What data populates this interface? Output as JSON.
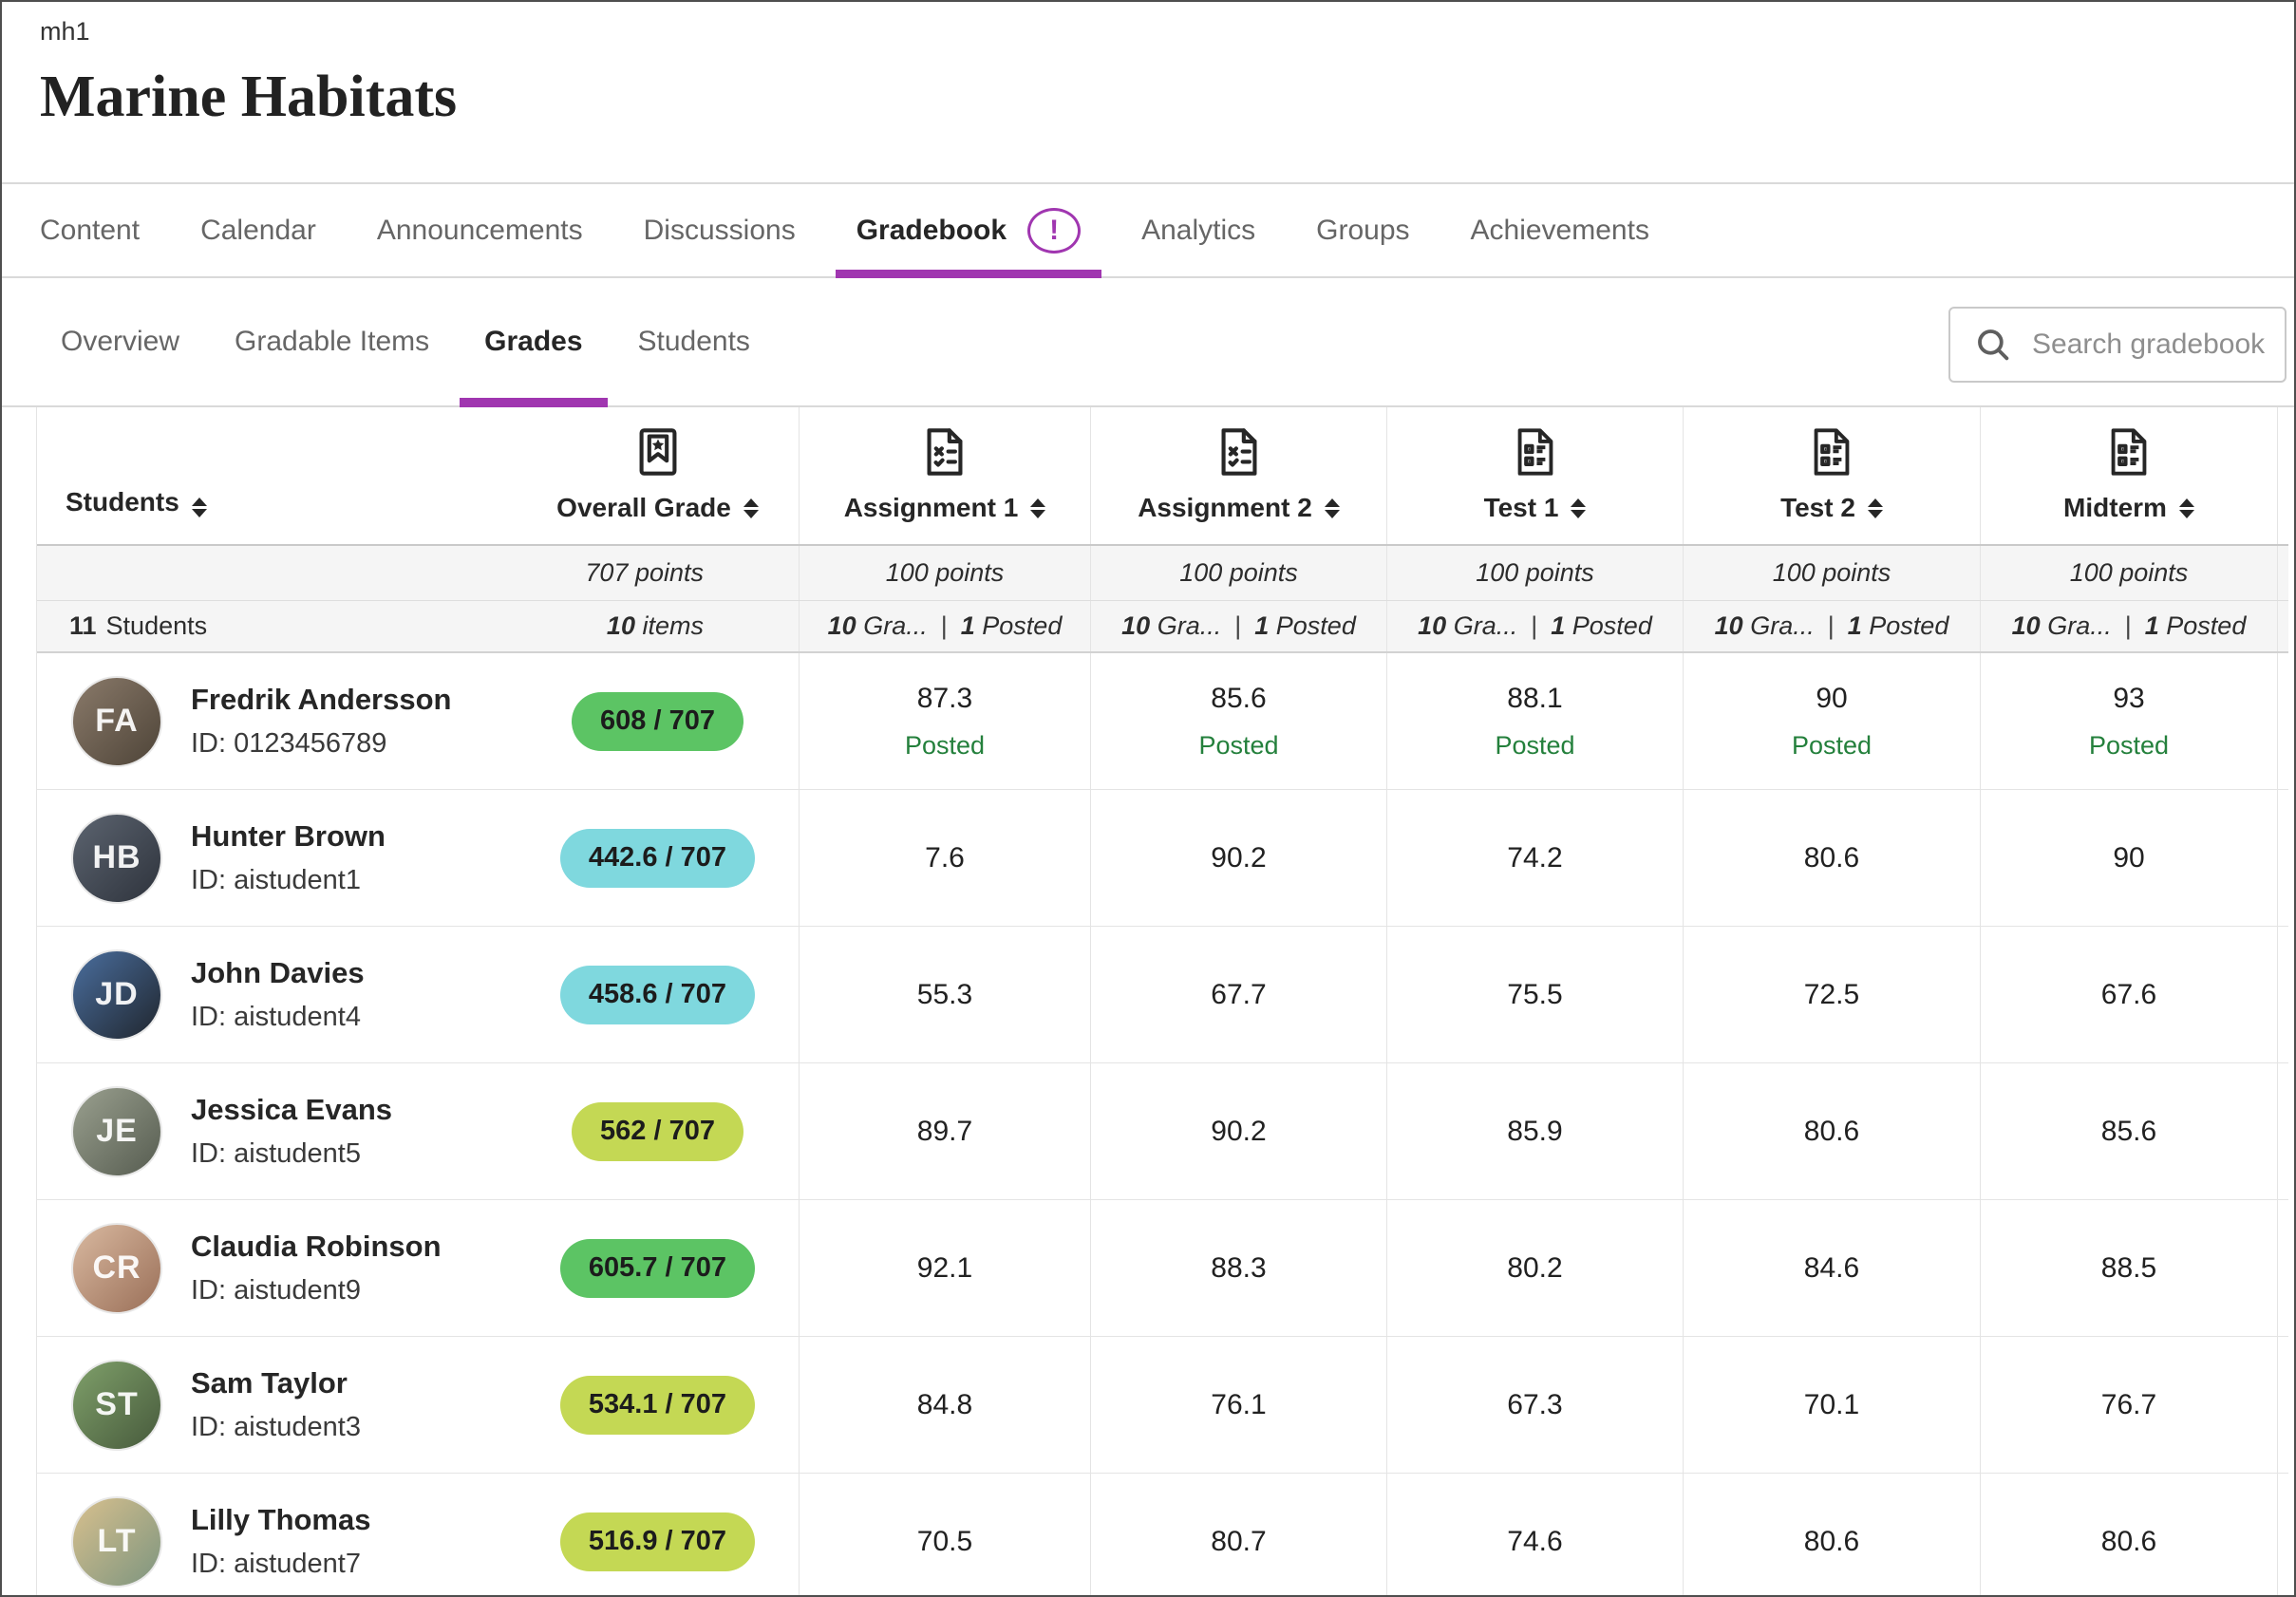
{
  "header": {
    "course_code": "mh1",
    "course_title": "Marine Habitats"
  },
  "primary_nav": [
    {
      "label": "Content"
    },
    {
      "label": "Calendar"
    },
    {
      "label": "Announcements"
    },
    {
      "label": "Discussions"
    },
    {
      "label": "Gradebook",
      "active": true,
      "badge": "!"
    },
    {
      "label": "Analytics"
    },
    {
      "label": "Groups"
    },
    {
      "label": "Achievements"
    }
  ],
  "sub_nav": {
    "tabs": [
      {
        "label": "Overview"
      },
      {
        "label": "Gradable Items"
      },
      {
        "label": "Grades",
        "active": true
      },
      {
        "label": "Students"
      }
    ],
    "search_placeholder": "Search gradebook"
  },
  "table": {
    "students_col": {
      "label": "Students",
      "count": "11",
      "count_label": "Students"
    },
    "overall_col": {
      "label": "Overall Grade",
      "icon": "award",
      "points": "707 points",
      "items_count": "10",
      "items_label": "items"
    },
    "item_columns": [
      {
        "label": "Assignment 1",
        "icon": "assignment",
        "points": "100 points",
        "graded_count": "10",
        "graded_label": "Gra...",
        "posted_count": "1",
        "posted_label": "Posted"
      },
      {
        "label": "Assignment 2",
        "icon": "assignment",
        "points": "100 points",
        "graded_count": "10",
        "graded_label": "Gra...",
        "posted_count": "1",
        "posted_label": "Posted"
      },
      {
        "label": "Test 1",
        "icon": "test",
        "points": "100 points",
        "graded_count": "10",
        "graded_label": "Gra...",
        "posted_count": "1",
        "posted_label": "Posted"
      },
      {
        "label": "Test 2",
        "icon": "test",
        "points": "100 points",
        "graded_count": "10",
        "graded_label": "Gra...",
        "posted_count": "1",
        "posted_label": "Posted"
      },
      {
        "label": "Midterm",
        "icon": "test",
        "points": "100 points",
        "graded_count": "10",
        "graded_label": "Gra...",
        "posted_count": "1",
        "posted_label": "Posted"
      }
    ],
    "rows": [
      {
        "name": "Fredrik Andersson",
        "id": "ID: 0123456789",
        "avatar_colors": [
          "#8a7a6a",
          "#4e4438"
        ],
        "overall": "608 / 707",
        "overall_color": "green",
        "grades": [
          {
            "value": "87.3",
            "status": "Posted"
          },
          {
            "value": "85.6",
            "status": "Posted"
          },
          {
            "value": "88.1",
            "status": "Posted"
          },
          {
            "value": "90",
            "status": "Posted"
          },
          {
            "value": "93",
            "status": "Posted"
          }
        ]
      },
      {
        "name": "Hunter Brown",
        "id": "ID: aistudent1",
        "avatar_colors": [
          "#5c6470",
          "#2e333c"
        ],
        "overall": "442.6 / 707",
        "overall_color": "teal",
        "grades": [
          {
            "value": "7.6"
          },
          {
            "value": "90.2"
          },
          {
            "value": "74.2"
          },
          {
            "value": "80.6"
          },
          {
            "value": "90"
          }
        ]
      },
      {
        "name": "John Davies",
        "id": "ID: aistudent4",
        "avatar_colors": [
          "#4a6e9e",
          "#20262e"
        ],
        "overall": "458.6 / 707",
        "overall_color": "teal",
        "grades": [
          {
            "value": "55.3"
          },
          {
            "value": "67.7"
          },
          {
            "value": "75.5"
          },
          {
            "value": "72.5"
          },
          {
            "value": "67.6"
          }
        ]
      },
      {
        "name": "Jessica Evans",
        "id": "ID: aistudent5",
        "avatar_colors": [
          "#9aa08f",
          "#565c50"
        ],
        "overall": "562 / 707",
        "overall_color": "lime",
        "grades": [
          {
            "value": "89.7"
          },
          {
            "value": "90.2"
          },
          {
            "value": "85.9"
          },
          {
            "value": "80.6"
          },
          {
            "value": "85.6"
          }
        ]
      },
      {
        "name": "Claudia Robinson",
        "id": "ID: aistudent9",
        "avatar_colors": [
          "#d9b9a0",
          "#9a6f58"
        ],
        "overall": "605.7 / 707",
        "overall_color": "green",
        "grades": [
          {
            "value": "92.1"
          },
          {
            "value": "88.3"
          },
          {
            "value": "80.2"
          },
          {
            "value": "84.6"
          },
          {
            "value": "88.5"
          }
        ]
      },
      {
        "name": "Sam Taylor",
        "id": "ID: aistudent3",
        "avatar_colors": [
          "#7fa06a",
          "#475a3c"
        ],
        "overall": "534.1 / 707",
        "overall_color": "lime",
        "grades": [
          {
            "value": "84.8"
          },
          {
            "value": "76.1"
          },
          {
            "value": "67.3"
          },
          {
            "value": "70.1"
          },
          {
            "value": "76.7"
          }
        ]
      },
      {
        "name": "Lilly Thomas",
        "id": "ID: aistudent7",
        "avatar_colors": [
          "#d8c08e",
          "#7d957f"
        ],
        "overall": "516.9 / 707",
        "overall_color": "lime",
        "grades": [
          {
            "value": "70.5"
          },
          {
            "value": "80.7"
          },
          {
            "value": "74.6"
          },
          {
            "value": "80.6"
          },
          {
            "value": "80.6"
          }
        ]
      }
    ]
  },
  "colors": {
    "accent_purple": "#a036b0",
    "posted_green": "#24803c",
    "pill_green": "#5cc464",
    "pill_teal": "#7fd8de",
    "pill_lime": "#c4d854"
  }
}
